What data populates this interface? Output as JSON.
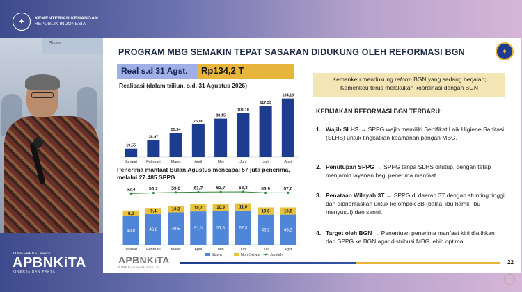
{
  "brand": {
    "line1": "KEMENTERIAN KEUANGAN",
    "line2": "REPUBLIK INDONESIA"
  },
  "video": {
    "screen_text": "Siswa"
  },
  "conference": {
    "small": "KONFERENSI PERS",
    "big": "APBNKiTA",
    "tag": "KINERJA DAN FAKTA"
  },
  "slide": {
    "title": "PROGRAM MBG SEMAKIN TEPAT SASARAN DIDUKUNG OLEH REFORMASI BGN",
    "real_label": "Real s.d 31 Agst.",
    "real_value": "Rp134,2 T",
    "subtitle": "Realisasi (dalam triliun, s.d. 31 Agustus 2026)",
    "chart2_caption": "Penerima manfaat Bulan Agustus mencapai 57 juta penerima, melalui 27.485 SPPG",
    "kemenkeu_box_pre": "Kemenkeu mendukung ",
    "kemenkeu_box_em": "reform",
    "kemenkeu_box_post": " BGN yang sedang berjalan; Kemenkeu terus melakukan koordinasi dengan BGN",
    "kebijakan_title": "KEBIJAKAN REFORMASI BGN TERBARU:",
    "policies": [
      {
        "num": "1.",
        "head": "Wajib SLHS",
        "text": " → SPPG wajib memiliki Sertifikat Laik Higiene Sanitasi (SLHS) untuk tingkatkan keamanan pangan MBG."
      },
      {
        "num": "2.",
        "head": "Penutupan SPPG",
        "text": " → SPPG tanpa SLHS ditutup, dengan tetap menjamin layanan bagi penerima manfaat."
      },
      {
        "num": "3.",
        "head": "Penataan Wilayah 3T",
        "text": " → SPPG di daerah 3T dengan stunting tinggi dan diprioritaskan untuk kelompok 3B (balita, ibu hamil, ibu menyusui) dan santri."
      },
      {
        "num": "4.",
        "head": "Target oleh BGN",
        "text": " → Penentuan penerima manfaat kini dialihkan dari SPPG ke BGN agar distribusi MBG lebih optimal."
      }
    ],
    "footer_logo": "APBNKiTA",
    "footer_tag": "KINERJA DAN FAKTA",
    "page_number": "22"
  },
  "chart_data": [
    {
      "type": "bar",
      "categories": [
        "Januari",
        "Februari",
        "Maret",
        "April",
        "Mei",
        "Juni",
        "Juli",
        "Agst"
      ],
      "values": [
        19.55,
        38.97,
        55.34,
        75.0,
        88.15,
        101.1,
        117.33,
        134.19
      ],
      "labels": [
        "19,55",
        "38,97",
        "55,34",
        "75,00",
        "88,15",
        "101,10",
        "117,33",
        "134,19"
      ],
      "ylim": [
        0,
        140
      ],
      "color": "#1d3c8f"
    },
    {
      "type": "bar",
      "stacked": true,
      "categories": [
        "Januari",
        "Februari",
        "Maret",
        "April",
        "Mei",
        "Juni",
        "Juli",
        "Agst"
      ],
      "series": [
        {
          "name": "Siswa",
          "values": [
            43.8,
            46.8,
            49.5,
            51.0,
            51.8,
            52.3,
            46.2,
            46.2
          ],
          "labels": [
            "43,8",
            "46,8",
            "49,5",
            "51,0",
            "51,8",
            "52,3",
            "46,2",
            "46,2"
          ],
          "color": "#4f86d8"
        },
        {
          "name": "Non-Siswa",
          "values": [
            8.6,
            9.4,
            10.2,
            10.7,
            10.9,
            11.0,
            10.8,
            10.8
          ],
          "labels": [
            "8,6",
            "9,4",
            "10,2",
            "10,7",
            "10,9",
            "11,0",
            "10,8",
            "10,8"
          ],
          "color": "#e8c23c"
        }
      ],
      "line": {
        "name": "Jumlah",
        "values": [
          52.4,
          56.2,
          59.6,
          61.7,
          62.7,
          63.3,
          56.9,
          57.0
        ],
        "labels": [
          "52,4",
          "56,2",
          "59,6",
          "61,7",
          "62,7",
          "63,3",
          "56,9",
          "57,0"
        ],
        "color": "#2e8b3a"
      },
      "legend": "bottom"
    }
  ]
}
